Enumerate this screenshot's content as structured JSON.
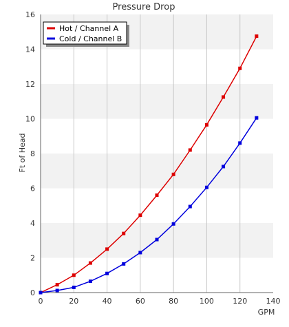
{
  "chart_data": {
    "type": "line",
    "title": "Pressure Drop",
    "xlabel": "GPM",
    "ylabel": "Ft of Head",
    "xlim": [
      0,
      140
    ],
    "ylim": [
      0,
      16
    ],
    "x_ticks": [
      "0",
      "20",
      "40",
      "60",
      "80",
      "100",
      "120",
      "140"
    ],
    "y_ticks": [
      "0",
      "2",
      "4",
      "6",
      "8",
      "10",
      "12",
      "14",
      "16"
    ],
    "x_step": 20,
    "y_step": 2,
    "grid": "vertical lines, alternating horizontal bands",
    "legend_position": "top-left",
    "x": [
      0,
      10,
      20,
      30,
      40,
      50,
      60,
      70,
      80,
      90,
      100,
      110,
      120,
      130
    ],
    "series": [
      {
        "name": "Hot / Channel A",
        "color": "#dd0000",
        "values": [
          0,
          0.45,
          1.0,
          1.7,
          2.5,
          3.4,
          4.45,
          5.6,
          6.8,
          8.2,
          9.65,
          11.25,
          12.9,
          14.75
        ]
      },
      {
        "name": "Cold / Channel B",
        "color": "#0000dd",
        "values": [
          0,
          0.12,
          0.3,
          0.65,
          1.1,
          1.65,
          2.3,
          3.05,
          3.95,
          4.95,
          6.05,
          7.25,
          8.6,
          10.05
        ]
      }
    ]
  }
}
